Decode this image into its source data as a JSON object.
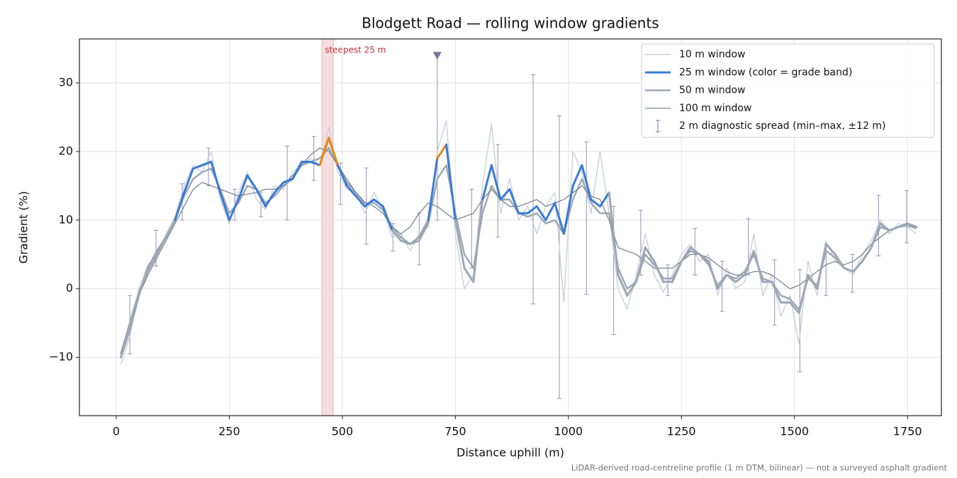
{
  "chart_data": {
    "type": "line",
    "title": "Blodgett Road — rolling window gradients",
    "x_label": "Distance uphill (m)",
    "y_label": "Gradient (%)",
    "footnote": "LiDAR-derived road-centreline profile (1 m DTM, bilinear) — not a surveyed asphalt gradient",
    "xlim": [
      -81.5,
      1825
    ],
    "ylim": [
      -18.5,
      36.4
    ],
    "xticks": [
      0,
      250,
      500,
      750,
      1000,
      1250,
      1500,
      1750
    ],
    "yticks": [
      {
        "value": -10,
        "label": "−10"
      },
      0,
      10,
      20,
      30
    ],
    "grid": true,
    "legend": "upper right",
    "x": [
      10,
      30,
      50,
      70,
      90,
      110,
      130,
      150,
      170,
      190,
      210,
      230,
      250,
      270,
      290,
      310,
      330,
      350,
      370,
      390,
      410,
      430,
      450,
      470,
      490,
      510,
      530,
      550,
      570,
      590,
      610,
      630,
      650,
      670,
      690,
      710,
      730,
      750,
      770,
      790,
      810,
      830,
      850,
      870,
      890,
      910,
      930,
      950,
      970,
      990,
      1010,
      1030,
      1050,
      1070,
      1090,
      1110,
      1130,
      1150,
      1170,
      1190,
      1210,
      1230,
      1250,
      1270,
      1290,
      1310,
      1330,
      1350,
      1370,
      1390,
      1410,
      1430,
      1450,
      1470,
      1490,
      1510,
      1530,
      1550,
      1570,
      1590,
      1610,
      1630,
      1650,
      1670,
      1690,
      1710,
      1730,
      1750,
      1770
    ],
    "series": [
      {
        "name": "10 m window",
        "color": "#c5cdd6",
        "values": [
          -11,
          -7,
          0,
          3.5,
          5,
          8,
          10.5,
          15,
          18,
          17,
          20,
          13,
          9.5,
          14,
          17,
          13,
          11.5,
          15,
          14.5,
          17,
          18,
          19,
          18,
          23.5,
          17,
          14.5,
          14,
          11,
          14,
          11.5,
          7.5,
          8,
          5.5,
          8,
          9,
          20,
          24.5,
          8,
          0,
          2,
          15,
          24,
          11,
          16,
          10,
          12,
          8,
          12,
          14,
          -2,
          20,
          17,
          11,
          20,
          11,
          0,
          -3,
          2,
          8,
          2,
          -0.5,
          2,
          5,
          6.5,
          4,
          5,
          -1,
          3,
          0,
          1,
          8,
          -1,
          2,
          -4,
          -1,
          -8,
          4,
          -1,
          7,
          4,
          3,
          2,
          5,
          7,
          10,
          8,
          9.5,
          9,
          8
        ]
      },
      {
        "name": "25 m window (color = grade band)",
        "color": "#3a7bd5",
        "values": [
          -10,
          -6,
          -1,
          3,
          5.5,
          7.5,
          10,
          14,
          17.5,
          18,
          18.5,
          14,
          10,
          13,
          16.5,
          14.5,
          12,
          14,
          15.5,
          16,
          18.5,
          18.5,
          18,
          22,
          18,
          15,
          13.5,
          12,
          13,
          12,
          8.5,
          7,
          6.5,
          7.5,
          10,
          19,
          21,
          10,
          3,
          1,
          13,
          18,
          13,
          14.5,
          11,
          11,
          12,
          10,
          12.5,
          8,
          15,
          18,
          13,
          12,
          14,
          2,
          -1,
          1,
          6,
          4,
          1,
          1,
          4,
          6,
          5,
          4,
          0,
          2,
          1,
          2,
          5.5,
          1,
          1,
          -2,
          -2,
          -3.5,
          2,
          0,
          6.5,
          5,
          3,
          2.5,
          4,
          6,
          9.5,
          8.5,
          9,
          9.5,
          9
        ]
      },
      {
        "name": "50 m window",
        "color": "#9ba6b6",
        "values": [
          -9.5,
          -5,
          -0.5,
          2.5,
          5,
          7.5,
          10,
          13.5,
          16,
          17,
          17.5,
          14.5,
          11,
          12.5,
          15,
          14.5,
          12.5,
          13.5,
          15,
          16,
          18,
          18.5,
          19,
          20.5,
          18,
          15.5,
          14,
          12.5,
          12.5,
          11.5,
          9,
          7.5,
          6.5,
          7,
          9.5,
          16,
          18,
          11,
          5,
          3,
          11,
          15,
          13,
          13,
          11,
          10.5,
          11,
          9.5,
          10,
          8,
          13,
          16,
          12.5,
          11,
          11,
          3,
          0,
          1,
          5,
          3.5,
          1.5,
          1.5,
          4,
          5.5,
          5,
          3.5,
          0.5,
          2,
          1.5,
          2.5,
          5,
          1.5,
          1,
          -1,
          -1.5,
          -3,
          1.5,
          0.5,
          5.5,
          4.5,
          3,
          2.5,
          4,
          6,
          9,
          8.5,
          9,
          9.2,
          8.8
        ]
      },
      {
        "name": "100 m window",
        "color": "#7d858e",
        "values": [
          -9.5,
          -6,
          -1,
          2,
          4.5,
          7,
          9.5,
          12,
          14.5,
          15.5,
          15,
          14.5,
          14,
          13.5,
          13.8,
          14,
          14.5,
          14.5,
          15,
          16.5,
          18,
          19.5,
          20.5,
          20,
          18,
          16,
          14,
          12.5,
          12,
          11,
          9,
          8,
          9,
          11,
          12.5,
          12,
          11,
          10,
          10.5,
          11,
          13,
          14.5,
          13,
          12,
          12,
          12.5,
          13,
          12,
          12.5,
          13,
          14,
          15,
          13.5,
          13,
          10,
          6,
          5.5,
          5,
          4,
          3,
          3,
          3,
          4,
          5,
          5,
          4.5,
          3.5,
          2.5,
          2,
          2,
          2.5,
          2.5,
          2,
          1,
          0,
          0.5,
          1.5,
          2.5,
          3.5,
          4,
          3.5,
          4,
          5,
          6.5,
          7.5,
          8.5,
          9,
          9.5,
          9
        ]
      }
    ],
    "grade_bands": {
      "thresholds": [
        10,
        20
      ],
      "colors": [
        "#9ba6b6",
        "#3a7bd5",
        "#e08a12"
      ]
    },
    "spread": {
      "name": "2 m diagnostic spread (min–max, ±12 m)",
      "color": "#9a90b8",
      "x": [
        30,
        88,
        146,
        204,
        262,
        320,
        378,
        437,
        496,
        553,
        612,
        670,
        710,
        786,
        844,
        922,
        980,
        1040,
        1100,
        1160,
        1220,
        1280,
        1340,
        1398,
        1456,
        1512,
        1570,
        1628,
        1686,
        1748
      ],
      "min": [
        -9.5,
        3.3,
        10,
        15,
        10,
        10.5,
        10,
        15.8,
        12.3,
        6.5,
        5.5,
        3.5,
        10,
        3,
        7.5,
        -2.2,
        -16,
        -0.8,
        -6.7,
        2,
        -1,
        2,
        -3.3,
        2,
        -5.3,
        -12.1,
        -1,
        -0.5,
        4.8,
        6.7
      ],
      "max": [
        -1,
        8.5,
        15.3,
        20.5,
        14.5,
        14,
        20.8,
        22.2,
        18.3,
        17.6,
        9.5,
        11,
        34,
        14.5,
        21,
        31.2,
        25.2,
        21.4,
        12,
        11.4,
        3.5,
        8.8,
        4,
        10.2,
        4.2,
        2.8,
        6.4,
        5,
        13.6,
        14.3
      ]
    },
    "peak_marker": {
      "x": 710,
      "y": 34,
      "color": "#8070a0"
    },
    "highlight": {
      "x0": 455,
      "x1": 480,
      "label": "steepest 25 m",
      "color": "#c0303a"
    }
  }
}
